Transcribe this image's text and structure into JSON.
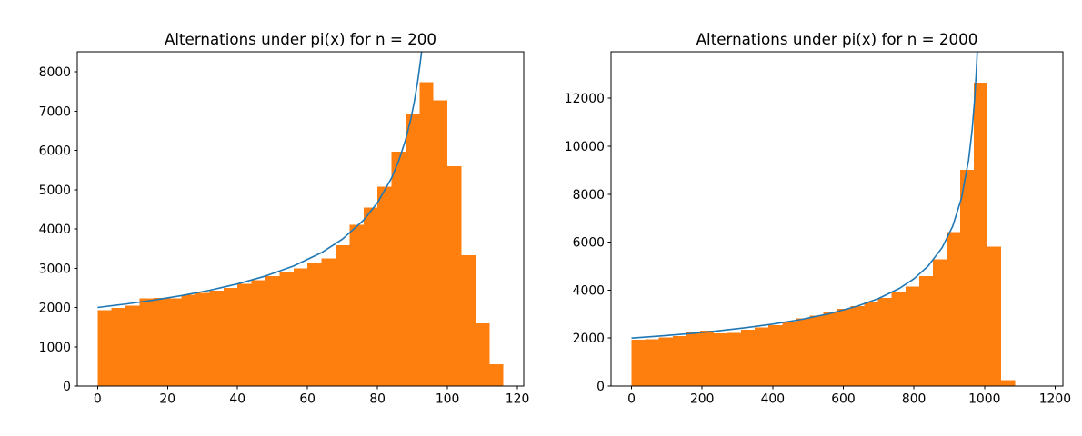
{
  "figure": {
    "background": "#ffffff",
    "bar_color": "#ff7f0e",
    "curve_color": "#1f77b4",
    "spine_color": "#000000",
    "text_color": "#000000"
  },
  "chart_data": [
    {
      "type": "bar",
      "subtype": "histogram-with-fit-curve",
      "title": "Alternations under pi(x) for n = 200",
      "xlabel": "",
      "ylabel": "",
      "grid": false,
      "legend": null,
      "xlim": [
        -5.8,
        121.8
      ],
      "ylim": [
        0,
        8510
      ],
      "xticks": [
        0,
        20,
        40,
        60,
        80,
        100,
        120
      ],
      "yticks": [
        0,
        1000,
        2000,
        3000,
        4000,
        5000,
        6000,
        7000,
        8000
      ],
      "bins": {
        "start": 0,
        "width": 4
      },
      "values": [
        1930,
        1990,
        2050,
        2230,
        2240,
        2230,
        2320,
        2370,
        2430,
        2500,
        2600,
        2690,
        2800,
        2900,
        3000,
        3150,
        3245,
        3590,
        4105,
        4540,
        5080,
        5965,
        6930,
        7730,
        7270,
        5595,
        3330,
        1590,
        550
      ],
      "curve": {
        "x": [
          0,
          8,
          16,
          24,
          32,
          40,
          48,
          56,
          64,
          70,
          76,
          80,
          84,
          86,
          88,
          89.5,
          90.5,
          91.5,
          92.2,
          92.6
        ],
        "y": [
          2000,
          2087,
          2187,
          2302,
          2437,
          2600,
          2800,
          3055,
          3396,
          3742,
          4221,
          4667,
          5292,
          5715,
          6262,
          6790,
          7230,
          7767,
          8220,
          8510
        ]
      }
    },
    {
      "type": "bar",
      "subtype": "histogram-with-fit-curve",
      "title": "Alternations under pi(x) for n = 2000",
      "xlabel": "",
      "ylabel": "",
      "grid": false,
      "legend": null,
      "xlim": [
        -58.2,
        1222.2
      ],
      "ylim": [
        0,
        13940
      ],
      "xticks": [
        0,
        200,
        400,
        600,
        800,
        1000,
        1200
      ],
      "yticks": [
        0,
        2000,
        4000,
        6000,
        8000,
        10000,
        12000
      ],
      "bins": {
        "start": 0,
        "width": 38.8
      },
      "values": [
        1935,
        1945,
        2025,
        2090,
        2280,
        2320,
        2190,
        2210,
        2340,
        2440,
        2540,
        2660,
        2820,
        2945,
        3075,
        3225,
        3325,
        3500,
        3680,
        3895,
        4150,
        4590,
        5290,
        6425,
        9015,
        12650,
        5820,
        250,
        0,
        0
      ],
      "curve": {
        "x": [
          0,
          80,
          160,
          240,
          320,
          400,
          480,
          560,
          640,
          700,
          760,
          800,
          840,
          880,
          910,
          935,
          955,
          965,
          972,
          976,
          978,
          979.4
        ],
        "y": [
          2000,
          2087,
          2182,
          2294,
          2425,
          2582,
          2774,
          3015,
          3333,
          3651,
          4082,
          4472,
          5000,
          5774,
          6667,
          7845,
          9428,
          10690,
          11952,
          12910,
          13484,
          13940
        ]
      }
    }
  ]
}
